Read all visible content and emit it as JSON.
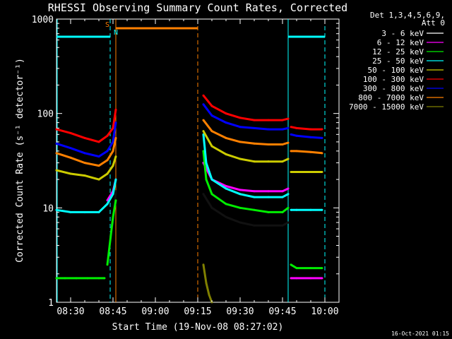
{
  "chart_data": {
    "type": "line",
    "title": "RHESSI Observing Summary Count Rates, Corrected",
    "xlabel": "Start Time (19-Nov-08 08:27:02)",
    "ylabel": "Corrected Count Rate (s⁻¹ detector⁻¹)",
    "yscale": "log",
    "ylim": [
      1,
      1000
    ],
    "xlim": [
      "08:25",
      "10:05"
    ],
    "x_ticks": [
      "08:30",
      "08:45",
      "09:00",
      "09:15",
      "09:30",
      "09:45",
      "10:00"
    ],
    "y_ticks": [
      "1",
      "10",
      "100",
      "1000"
    ],
    "legend": {
      "header": [
        "Det 1,3,4,5,6,9,",
        "Att 0"
      ],
      "placement": "right",
      "entries": [
        {
          "label": "3 - 6 keV",
          "color": "#000000"
        },
        {
          "label": "6 - 12 keV",
          "color": "#ff00ff"
        },
        {
          "label": "12 - 25 keV",
          "color": "#00ee00"
        },
        {
          "label": "25 - 50 keV",
          "color": "#00ffff"
        },
        {
          "label": "50 - 100 keV",
          "color": "#cccc00"
        },
        {
          "label": "100 - 300 keV",
          "color": "#ff0000"
        },
        {
          "label": "300 - 800 keV",
          "color": "#0000ff"
        },
        {
          "label": "800 - 7000 keV",
          "color": "#ff8000"
        },
        {
          "label": "7000 - 15000 keV",
          "color": "#808000"
        }
      ]
    },
    "flags": [
      {
        "label": "S",
        "color": "#ff8000"
      },
      {
        "label": "N",
        "color": "#00ffff"
      }
    ],
    "series": [
      {
        "name": "3 - 6 keV",
        "color": "#000000",
        "segments": [
          [
            [
              "08:44",
              "5"
            ],
            [
              "08:45",
              "7"
            ],
            [
              "08:46",
              "15"
            ]
          ],
          [
            [
              "09:17",
              "14"
            ],
            [
              "09:20",
              "10"
            ],
            [
              "09:25",
              "8"
            ],
            [
              "09:30",
              "7"
            ],
            [
              "09:35",
              "6.5"
            ],
            [
              "09:40",
              "6.5"
            ],
            [
              "09:45",
              "6.5"
            ],
            [
              "09:47",
              "7"
            ]
          ]
        ]
      },
      {
        "name": "6 - 12 keV",
        "color": "#ff00ff",
        "segments": [
          [
            [
              "08:43",
              "12"
            ],
            [
              "08:45",
              "15"
            ],
            [
              "08:46",
              "20"
            ]
          ],
          [
            [
              "09:17",
              "30"
            ],
            [
              "09:20",
              "20"
            ],
            [
              "09:25",
              "17"
            ],
            [
              "09:30",
              "15.5"
            ],
            [
              "09:35",
              "15"
            ],
            [
              "09:40",
              "15"
            ],
            [
              "09:45",
              "15"
            ],
            [
              "09:47",
              "16"
            ]
          ],
          [
            [
              "09:48",
              "1.8"
            ],
            [
              "09:50",
              "1.8"
            ],
            [
              "09:55",
              "1.8"
            ],
            [
              "09:59",
              "1.8"
            ]
          ]
        ]
      },
      {
        "name": "12 - 25 keV",
        "color": "#00ee00",
        "segments": [
          [
            [
              "08:25",
              "1.8"
            ],
            [
              "08:28",
              "1.8"
            ],
            [
              "08:32",
              "1.8"
            ],
            [
              "08:36",
              "1.8"
            ],
            [
              "08:40",
              "1.8"
            ],
            [
              "08:42",
              "1.8"
            ]
          ],
          [
            [
              "08:43",
              "2.5"
            ],
            [
              "08:45",
              "8"
            ],
            [
              "08:46",
              "12"
            ]
          ],
          [
            [
              "09:17",
              "40"
            ],
            [
              "09:18",
              "20"
            ],
            [
              "09:20",
              "14"
            ],
            [
              "09:25",
              "11"
            ],
            [
              "09:30",
              "10"
            ],
            [
              "09:35",
              "9.5"
            ],
            [
              "09:40",
              "9"
            ],
            [
              "09:45",
              "9"
            ],
            [
              "09:47",
              "10"
            ]
          ],
          [
            [
              "09:48",
              "2.5"
            ],
            [
              "09:50",
              "2.3"
            ],
            [
              "09:55",
              "2.3"
            ],
            [
              "09:59",
              "2.3"
            ]
          ]
        ]
      },
      {
        "name": "25 - 50 keV",
        "color": "#00ffff",
        "segments": [
          [
            [
              "08:25",
              "9.5"
            ],
            [
              "08:30",
              "9"
            ],
            [
              "08:35",
              "9"
            ],
            [
              "08:40",
              "9"
            ],
            [
              "08:43",
              "11"
            ],
            [
              "08:45",
              "14"
            ],
            [
              "08:46",
              "20"
            ]
          ],
          [
            [
              "09:17",
              "60"
            ],
            [
              "09:18",
              "30"
            ],
            [
              "09:20",
              "20"
            ],
            [
              "09:25",
              "16"
            ],
            [
              "09:30",
              "14"
            ],
            [
              "09:35",
              "13"
            ],
            [
              "09:40",
              "13"
            ],
            [
              "09:45",
              "13"
            ],
            [
              "09:47",
              "14"
            ]
          ],
          [
            [
              "09:48",
              "9.5"
            ],
            [
              "09:50",
              "9.5"
            ],
            [
              "09:55",
              "9.5"
            ],
            [
              "09:59",
              "9.5"
            ]
          ]
        ]
      },
      {
        "name": "50 - 100 keV",
        "color": "#cccc00",
        "segments": [
          [
            [
              "08:25",
              "25"
            ],
            [
              "08:30",
              "23"
            ],
            [
              "08:35",
              "22"
            ],
            [
              "08:40",
              "20"
            ],
            [
              "08:43",
              "23"
            ],
            [
              "08:45",
              "28"
            ],
            [
              "08:46",
              "35"
            ]
          ],
          [
            [
              "09:17",
              "65"
            ],
            [
              "09:20",
              "45"
            ],
            [
              "09:25",
              "37"
            ],
            [
              "09:30",
              "33"
            ],
            [
              "09:35",
              "31"
            ],
            [
              "09:40",
              "31"
            ],
            [
              "09:45",
              "31"
            ],
            [
              "09:47",
              "33"
            ]
          ],
          [
            [
              "09:48",
              "24"
            ],
            [
              "09:50",
              "24"
            ],
            [
              "09:55",
              "24"
            ],
            [
              "09:59",
              "24"
            ]
          ]
        ]
      },
      {
        "name": "100 - 300 keV",
        "color": "#ff0000",
        "segments": [
          [
            [
              "08:25",
              "68"
            ],
            [
              "08:30",
              "62"
            ],
            [
              "08:35",
              "55"
            ],
            [
              "08:40",
              "50"
            ],
            [
              "08:43",
              "58"
            ],
            [
              "08:45",
              "70"
            ],
            [
              "08:46",
              "110"
            ]
          ],
          [
            [
              "09:17",
              "155"
            ],
            [
              "09:20",
              "120"
            ],
            [
              "09:25",
              "100"
            ],
            [
              "09:30",
              "90"
            ],
            [
              "09:35",
              "85"
            ],
            [
              "09:40",
              "85"
            ],
            [
              "09:45",
              "85"
            ],
            [
              "09:47",
              "88"
            ]
          ],
          [
            [
              "09:48",
              "72"
            ],
            [
              "09:50",
              "70"
            ],
            [
              "09:55",
              "68"
            ],
            [
              "09:59",
              "68"
            ]
          ]
        ]
      },
      {
        "name": "300 - 800 keV",
        "color": "#0000ff",
        "segments": [
          [
            [
              "08:25",
              "48"
            ],
            [
              "08:30",
              "43"
            ],
            [
              "08:35",
              "38"
            ],
            [
              "08:40",
              "35"
            ],
            [
              "08:43",
              "40"
            ],
            [
              "08:45",
              "50"
            ],
            [
              "08:46",
              "80"
            ]
          ],
          [
            [
              "09:17",
              "125"
            ],
            [
              "09:20",
              "95"
            ],
            [
              "09:25",
              "80"
            ],
            [
              "09:30",
              "72"
            ],
            [
              "09:35",
              "70"
            ],
            [
              "09:40",
              "68"
            ],
            [
              "09:45",
              "68"
            ],
            [
              "09:47",
              "70"
            ]
          ],
          [
            [
              "09:48",
              "60"
            ],
            [
              "09:50",
              "58"
            ],
            [
              "09:55",
              "56"
            ],
            [
              "09:59",
              "55"
            ]
          ]
        ]
      },
      {
        "name": "800 - 7000 keV",
        "color": "#ff8000",
        "segments": [
          [
            [
              "08:25",
              "38"
            ],
            [
              "08:30",
              "34"
            ],
            [
              "08:35",
              "30"
            ],
            [
              "08:40",
              "28"
            ],
            [
              "08:43",
              "32"
            ],
            [
              "08:45",
              "40"
            ],
            [
              "08:46",
              "55"
            ]
          ],
          [
            [
              "09:17",
              "85"
            ],
            [
              "09:20",
              "65"
            ],
            [
              "09:25",
              "55"
            ],
            [
              "09:30",
              "50"
            ],
            [
              "09:35",
              "48"
            ],
            [
              "09:40",
              "47"
            ],
            [
              "09:45",
              "47"
            ],
            [
              "09:47",
              "49"
            ]
          ],
          [
            [
              "09:48",
              "40"
            ],
            [
              "09:50",
              "40"
            ],
            [
              "09:55",
              "39"
            ],
            [
              "09:59",
              "38"
            ]
          ]
        ]
      },
      {
        "name": "7000 - 15000 keV",
        "color": "#808000",
        "segments": [
          [
            [
              "09:17",
              "2.5"
            ],
            [
              "09:18",
              "1.6"
            ],
            [
              "09:19",
              "1.2"
            ],
            [
              "09:20",
              "1.0"
            ]
          ]
        ]
      }
    ],
    "markers": [
      {
        "label": "S",
        "type": "solid-bar",
        "color": "#ff8000",
        "level": "800",
        "start": "08:46",
        "end": "09:15"
      },
      {
        "type": "solid-bar",
        "color": "#00ffff",
        "level": "650",
        "start": "08:25",
        "end": "08:44"
      },
      {
        "type": "solid-bar",
        "color": "#00ffff",
        "level": "650",
        "start": "09:47",
        "end": "10:00"
      }
    ]
  },
  "footer": {
    "timestamp": "16-Oct-2021 01:15"
  }
}
